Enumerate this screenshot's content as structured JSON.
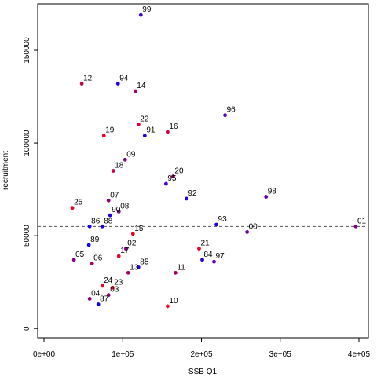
{
  "chart_data": {
    "type": "scatter",
    "title": "",
    "xlabel": "SSB Q1",
    "ylabel": "recruitment",
    "xlim": [
      -8000,
      412000
    ],
    "ylim": [
      -5000,
      175000
    ],
    "xticks": [
      0,
      100000,
      200000,
      300000,
      400000
    ],
    "xtick_labels": [
      "0e+00",
      "1e+05",
      "2e+05",
      "3e+05",
      "4e+05"
    ],
    "yticks": [
      0,
      50000,
      100000,
      150000
    ],
    "ytick_labels": [
      "0",
      "50000",
      "100000",
      "150000"
    ],
    "reference_line": {
      "y": 55000,
      "style": "dashed",
      "color": "#555555"
    },
    "grid": false,
    "points": [
      {
        "label": "99",
        "x": 123000,
        "y": 169000,
        "color": "#4400cc"
      },
      {
        "label": "12",
        "x": 48000,
        "y": 132000,
        "color": "#cc0044"
      },
      {
        "label": "94",
        "x": 94000,
        "y": 132000,
        "color": "#2200ee"
      },
      {
        "label": "14",
        "x": 116000,
        "y": 128000,
        "color": "#aa0066"
      },
      {
        "label": "96",
        "x": 230000,
        "y": 115000,
        "color": "#5500bb"
      },
      {
        "label": "22",
        "x": 120000,
        "y": 110000,
        "color": "#dd0033"
      },
      {
        "label": "19",
        "x": 76000,
        "y": 104000,
        "color": "#ee0022"
      },
      {
        "label": "91",
        "x": 128000,
        "y": 104000,
        "color": "#2200ee"
      },
      {
        "label": "16",
        "x": 157000,
        "y": 106000,
        "color": "#cc0044"
      },
      {
        "label": "09",
        "x": 103000,
        "y": 91000,
        "color": "#880088"
      },
      {
        "label": "18",
        "x": 88000,
        "y": 85000,
        "color": "#cc0044"
      },
      {
        "label": "20",
        "x": 164000,
        "y": 82000,
        "color": "#aa0066"
      },
      {
        "label": "95",
        "x": 155000,
        "y": 78000,
        "color": "#4400cc"
      },
      {
        "label": "92",
        "x": 181000,
        "y": 70000,
        "color": "#2200ee"
      },
      {
        "label": "98",
        "x": 282000,
        "y": 71000,
        "color": "#6600aa"
      },
      {
        "label": "07",
        "x": 82000,
        "y": 69000,
        "color": "#880088"
      },
      {
        "label": "25",
        "x": 36000,
        "y": 65000,
        "color": "#ee0022"
      },
      {
        "label": "08",
        "x": 95000,
        "y": 63000,
        "color": "#880088"
      },
      {
        "label": "90",
        "x": 84000,
        "y": 61000,
        "color": "#2200ee"
      },
      {
        "label": "86",
        "x": 58000,
        "y": 55000,
        "color": "#1100ff"
      },
      {
        "label": "88",
        "x": 74000,
        "y": 55000,
        "color": "#2200ee"
      },
      {
        "label": "93",
        "x": 219000,
        "y": 56000,
        "color": "#2200ee"
      },
      {
        "label": "00",
        "x": 258000,
        "y": 52000,
        "color": "#6600aa"
      },
      {
        "label": "01",
        "x": 396000,
        "y": 55000,
        "color": "#880088"
      },
      {
        "label": "15",
        "x": 113000,
        "y": 51000,
        "color": "#ee0022"
      },
      {
        "label": "89",
        "x": 57000,
        "y": 45000,
        "color": "#1100ff"
      },
      {
        "label": "21",
        "x": 197000,
        "y": 43000,
        "color": "#ee0022"
      },
      {
        "label": "02",
        "x": 104000,
        "y": 43000,
        "color": "#880088"
      },
      {
        "label": "17",
        "x": 95000,
        "y": 39000,
        "color": "#ee0022"
      },
      {
        "label": "05",
        "x": 38000,
        "y": 37000,
        "color": "#880088"
      },
      {
        "label": "06",
        "x": 61000,
        "y": 35000,
        "color": "#aa0066"
      },
      {
        "label": "84",
        "x": 201000,
        "y": 37000,
        "color": "#2200ee"
      },
      {
        "label": "97",
        "x": 216000,
        "y": 36000,
        "color": "#6600aa"
      },
      {
        "label": "85",
        "x": 120000,
        "y": 33000,
        "color": "#2200ee"
      },
      {
        "label": "13",
        "x": 107000,
        "y": 30000,
        "color": "#aa0066"
      },
      {
        "label": "11",
        "x": 167000,
        "y": 30000,
        "color": "#aa0066"
      },
      {
        "label": "24",
        "x": 74000,
        "y": 23000,
        "color": "#ee0022"
      },
      {
        "label": "23",
        "x": 87000,
        "y": 22000,
        "color": "#ee0022"
      },
      {
        "label": "03",
        "x": 82000,
        "y": 18000,
        "color": "#880088"
      },
      {
        "label": "04",
        "x": 58000,
        "y": 16000,
        "color": "#880088"
      },
      {
        "label": "87",
        "x": 69000,
        "y": 13000,
        "color": "#1100ff"
      },
      {
        "label": "10",
        "x": 157000,
        "y": 12000,
        "color": "#ee0022"
      }
    ]
  }
}
